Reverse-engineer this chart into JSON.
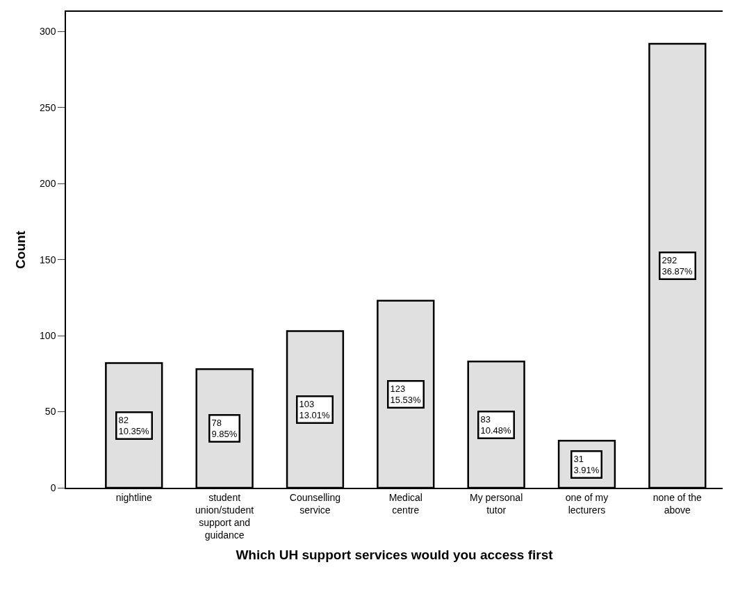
{
  "chart_data": {
    "type": "bar",
    "xlabel": "Which UH support services would you access first",
    "ylabel": "Count",
    "categories": [
      "nightline",
      "student\nunion/student\nsupport and\nguidance",
      "Counselling\nservice",
      "Medical\ncentre",
      "My personal\ntutor",
      "one of my\nlecturers",
      "none of the\nabove"
    ],
    "values": [
      82,
      78,
      103,
      123,
      83,
      31,
      292
    ],
    "value_labels": [
      "82\n10.35%",
      "78\n9.85%",
      "103\n13.01%",
      "123\n15.53%",
      "83\n10.48%",
      "31\n3.91%",
      "292\n36.87%"
    ],
    "color": "#e0e0e0",
    "ylim": [
      0,
      313
    ],
    "yticks": [
      0,
      50,
      100,
      150,
      200,
      250,
      300
    ]
  }
}
